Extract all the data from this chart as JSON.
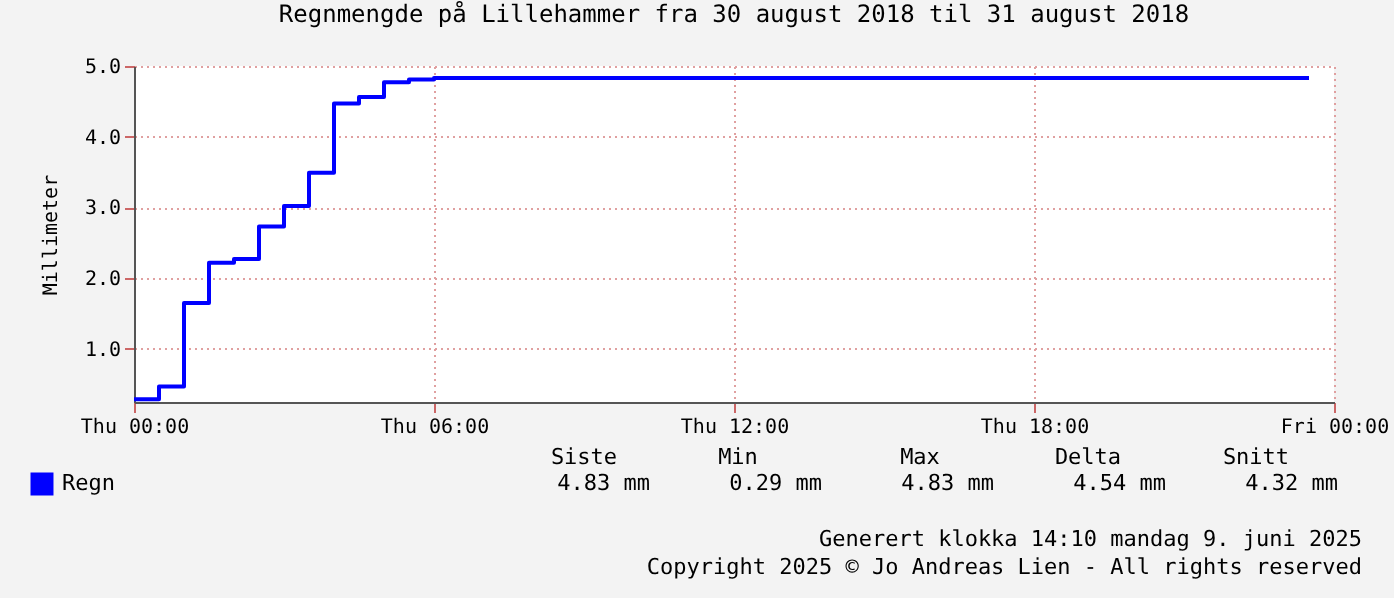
{
  "chart_data": {
    "type": "step",
    "title": "Regnmengde på Lillehammer fra 30 august 2018 til 31 august 2018",
    "ylabel": "Millimeter",
    "x": [
      "2018-08-30T00:00",
      "2018-08-30T00:30",
      "2018-08-30T01:00",
      "2018-08-30T01:30",
      "2018-08-30T02:00",
      "2018-08-30T02:30",
      "2018-08-30T03:00",
      "2018-08-30T03:30",
      "2018-08-30T04:00",
      "2018-08-30T04:30",
      "2018-08-30T05:00",
      "2018-08-30T05:30",
      "2018-08-30T06:00",
      "2018-08-30T23:30"
    ],
    "series": [
      {
        "name": "Regn",
        "color": "#0000ff",
        "values": [
          0.29,
          0.47,
          1.65,
          2.22,
          2.27,
          2.73,
          3.02,
          3.49,
          4.47,
          4.56,
          4.77,
          4.81,
          4.83,
          4.83
        ]
      }
    ],
    "xlim": [
      "2018-08-30T00:00",
      "2018-08-31T00:00"
    ],
    "xticks": [
      {
        "value": "2018-08-30T00:00",
        "label": "Thu 00:00"
      },
      {
        "value": "2018-08-30T06:00",
        "label": "Thu 06:00"
      },
      {
        "value": "2018-08-30T12:00",
        "label": "Thu 12:00"
      },
      {
        "value": "2018-08-30T18:00",
        "label": "Thu 18:00"
      },
      {
        "value": "2018-08-31T00:00",
        "label": "Fri 00:00"
      }
    ],
    "ylim": [
      0.25,
      5.0
    ],
    "yticks": [
      {
        "value": 1,
        "label": "1.0"
      },
      {
        "value": 2,
        "label": "2.0"
      },
      {
        "value": 3,
        "label": "3.0"
      },
      {
        "value": 4,
        "label": "4.0"
      },
      {
        "value": 5,
        "label": "5.0"
      }
    ],
    "grid": true,
    "legend": "bottom left",
    "line_style": "solid",
    "annotations": [
      "Siste",
      "Min",
      "Max",
      "Delta",
      "Snitt",
      "4.83 mm",
      "0.29 mm",
      "4.83 mm",
      "4.54 mm",
      "4.32 mm",
      "Generert klokka 14:10 mandag 9. juni 2025",
      "Copyright 2025 © Jo Andreas Lien - All rights reserved"
    ]
  }
}
